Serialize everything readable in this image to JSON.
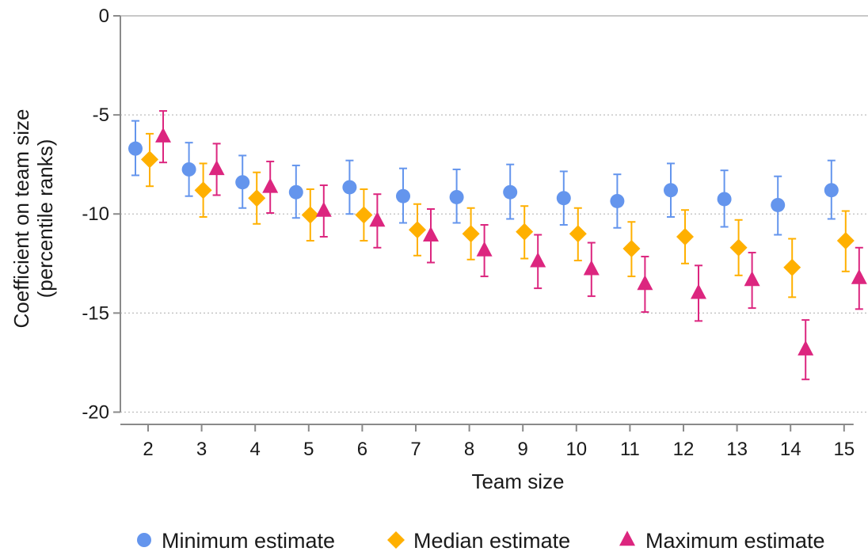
{
  "chart_data": {
    "type": "scatter",
    "xlabel": "Team size",
    "ylabel_lines": [
      "Coefficient on team size",
      "(percentile ranks)"
    ],
    "categories": [
      "2",
      "3",
      "4",
      "5",
      "6",
      "7",
      "8",
      "9",
      "10",
      "11",
      "12",
      "13",
      "14",
      "15"
    ],
    "yticks": [
      "0",
      "-5",
      "-10",
      "-15",
      "-20"
    ],
    "ytick_values": [
      0,
      -5,
      -10,
      -15,
      -20
    ],
    "ylim": [
      -20.5,
      0
    ],
    "grid": "horizontal dotted",
    "legend_position": "bottom",
    "series": [
      {
        "name": "Minimum estimate",
        "marker": "circle",
        "color": "#6495ed",
        "values": [
          -6.7,
          -7.75,
          -8.4,
          -8.9,
          -8.65,
          -9.1,
          -9.15,
          -8.9,
          -9.2,
          -9.35,
          -8.8,
          -9.25,
          -9.55,
          -8.8
        ],
        "lower": [
          -8.05,
          -9.1,
          -9.7,
          -10.2,
          -10.0,
          -10.45,
          -10.45,
          -10.25,
          -10.55,
          -10.7,
          -10.15,
          -10.65,
          -11.05,
          -10.25
        ],
        "upper": [
          -5.3,
          -6.4,
          -7.05,
          -7.55,
          -7.3,
          -7.7,
          -7.75,
          -7.5,
          -7.85,
          -8.0,
          -7.45,
          -7.8,
          -8.1,
          -7.3
        ]
      },
      {
        "name": "Median estimate",
        "marker": "diamond",
        "color": "#ffb000",
        "values": [
          -7.25,
          -8.8,
          -9.2,
          -10.05,
          -10.05,
          -10.8,
          -11.0,
          -10.9,
          -11.0,
          -11.75,
          -11.15,
          -11.7,
          -12.7,
          -11.35
        ],
        "lower": [
          -8.6,
          -10.15,
          -10.5,
          -11.35,
          -11.35,
          -12.1,
          -12.3,
          -12.25,
          -12.35,
          -13.15,
          -12.5,
          -13.1,
          -14.2,
          -12.9
        ],
        "upper": [
          -5.95,
          -7.45,
          -7.9,
          -8.75,
          -8.75,
          -9.5,
          -9.7,
          -9.6,
          -9.7,
          -10.4,
          -9.8,
          -10.3,
          -11.25,
          -9.85
        ]
      },
      {
        "name": "Maximum estimate",
        "marker": "triangle",
        "color": "#dc267f",
        "values": [
          -6.1,
          -7.75,
          -8.65,
          -9.85,
          -10.35,
          -11.1,
          -11.85,
          -12.4,
          -12.8,
          -13.55,
          -14.0,
          -13.35,
          -16.85,
          -13.25
        ],
        "lower": [
          -7.4,
          -9.05,
          -9.95,
          -11.15,
          -11.7,
          -12.45,
          -13.15,
          -13.75,
          -14.15,
          -14.95,
          -15.4,
          -14.75,
          -18.35,
          -14.8
        ],
        "upper": [
          -4.8,
          -6.45,
          -7.35,
          -8.55,
          -9.0,
          -9.75,
          -10.55,
          -11.05,
          -11.45,
          -12.15,
          -12.6,
          -11.95,
          -15.35,
          -11.7
        ]
      }
    ]
  }
}
